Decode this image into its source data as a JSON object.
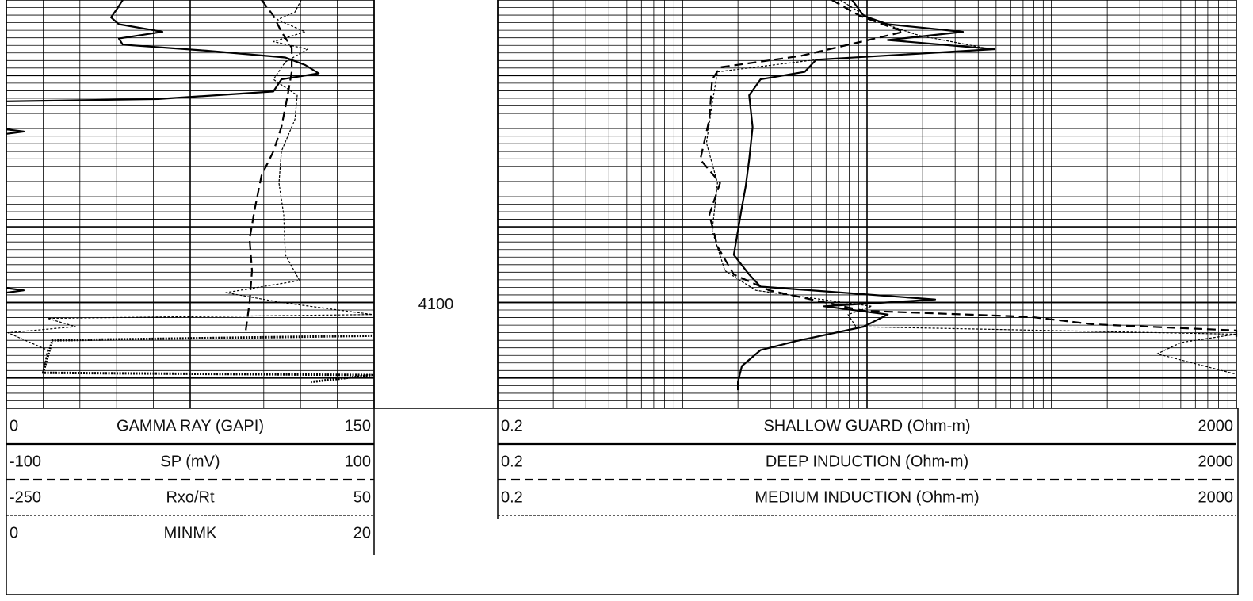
{
  "chart_data": [
    {
      "type": "line",
      "xscale": "linear",
      "ylim": [
        4060,
        4114
      ],
      "yticks": [
        4100
      ],
      "ygrid_step": 1,
      "ygrid_major": 10,
      "xgrid_divisions": 10,
      "xgrid_major": 5,
      "series": [
        {
          "name": "GAMMA RAY (GAPI)",
          "style": "solid",
          "color": "#000000",
          "xlim": [
            0,
            150
          ],
          "depth": [
            4060,
            4061.1,
            4062.3,
            4063.2,
            4064.2,
            4065.1,
            4065.9,
            4066.7,
            4067.6,
            4068.6,
            4069.7,
            4070.5,
            4072.1,
            4073.1,
            4073.4,
            null,
            4077.1,
            4077.4,
            4077.7,
            null,
            4098.1,
            4098.4,
            4098.7
          ],
          "values": [
            47.5,
            45.3,
            42.7,
            45.9,
            63.7,
            45.9,
            47.5,
            81.5,
            113.8,
            121.9,
            127.4,
            112.2,
            108.9,
            62,
            0,
            null,
            0,
            7.1,
            0,
            null,
            0,
            7.1,
            0
          ]
        },
        {
          "name": "SP (mV)",
          "style": "dashed",
          "color": "#000000",
          "xlim": [
            -100,
            100
          ],
          "depth": [
            4060,
            4062.1,
            4064.2,
            4066.3,
            4069.5,
            4072.6,
            4076.8,
            4080,
            4083.2,
            4087.4,
            4091.6,
            4095.8,
            4100,
            4103.7
          ],
          "values": [
            38.8,
            45.3,
            49.6,
            55.2,
            55.2,
            53,
            49.6,
            45.3,
            38.8,
            35.3,
            32.3,
            33.6,
            32.3,
            30.2
          ]
        },
        {
          "name": "Rxo/Rt",
          "style": "dotted",
          "color": "#000000",
          "xlim": [
            -250,
            50
          ],
          "depth": [
            4060,
            4061.6,
            4062.6,
            4064.2,
            4065.5,
            4066.5,
            4068.2,
            4070.5,
            4072.6,
            4075.8,
            4080,
            4084.2,
            4088.4,
            4093.7,
            4097.1,
            4098.7,
            4100,
            4101.6,
            4102.1,
            4103.2,
            4104,
            4106.3,
            4108.9
          ],
          "values": [
            -9.5,
            -14.6,
            -28.9,
            -6.2,
            -32.1,
            -4.3,
            -22.4,
            -32.1,
            -12.7,
            -14.6,
            -25.6,
            -27.6,
            -23.7,
            -22.4,
            -10.8,
            -70.9,
            -25.6,
            48.7,
            -216.4,
            -193.7,
            -248.7,
            -216.4,
            -219.6
          ]
        },
        {
          "name": "MINMK",
          "style": "thickdotted",
          "color": "#000000",
          "xlim": [
            0,
            20
          ],
          "depth": [
            4104.4,
            4105,
            4109.3,
            4109.6,
            4110.5
          ],
          "values": [
            19.9,
            2.5,
            2,
            19.9,
            16.6
          ]
        }
      ]
    },
    {
      "type": "line",
      "xscale": "log",
      "ylim": [
        4060,
        4114
      ],
      "ygrid_step": 1,
      "ygrid_major": 10,
      "series": [
        {
          "name": "SHALLOW GUARD (Ohm-m)",
          "style": "solid",
          "color": "#000000",
          "xlim": [
            0.2,
            2000
          ],
          "depth": [
            4060,
            4062.1,
            4063.2,
            4064.2,
            4065.3,
            4066.5,
            4067.9,
            4069.5,
            4070.5,
            4072.6,
            4076.8,
            4081.1,
            4084.7,
            4087.4,
            4090.5,
            4093.7,
            4096.3,
            4097.9,
            4099.6,
            4100.5,
            4101.6,
            4103.2,
            4105.1,
            4106.3,
            4108.4,
            4110.5,
            4111.6
          ],
          "values": [
            16.6,
            19.2,
            25.9,
            66.1,
            25.9,
            98.2,
            10.6,
            9.2,
            5.3,
            4.6,
            4.8,
            4.6,
            4.4,
            4.2,
            4,
            3.8,
            4.6,
            5.3,
            46.8,
            11.7,
            25.9,
            19.2,
            8.3,
            5.3,
            4.2,
            4,
            4
          ]
        },
        {
          "name": "DEEP INDUCTION (Ohm-m)",
          "style": "dashed",
          "color": "#000000",
          "xlim": [
            0.2,
            2000
          ],
          "depth": [
            4060,
            4062.1,
            4064.2,
            4067.4,
            4068.9,
            4070.5,
            4075.8,
            4081.1,
            4084.2,
            4088.4,
            4092.6,
            4096.3,
            4098.4,
            4101.1,
            4101.9,
            4102.9,
            4103.7,
            4104.7
          ],
          "values": [
            12.9,
            18.3,
            31.5,
            8.7,
            3.2,
            2.9,
            2.8,
            2.5,
            3.2,
            2.8,
            3.1,
            3.8,
            5.9,
            19.2,
            153,
            337,
            2000,
            2000
          ]
        },
        {
          "name": "MEDIUM INDUCTION (Ohm-m)",
          "style": "dotted",
          "color": "#000000",
          "xlim": [
            0.2,
            2000
          ],
          "depth": [
            4060,
            4062.6,
            4064.7,
            4066.5,
            4067.9,
            4069.5,
            4073.7,
            4078.9,
            4084.2,
            4090.5,
            4095.8,
            4098.4,
            4100.5,
            4101.6,
            4103.2,
            4104.2,
            4105.3,
            4106.8,
            4109.5
          ],
          "values": [
            14.3,
            21.2,
            38.4,
            93.5,
            10.6,
            3.1,
            2.9,
            2.7,
            3.1,
            2.9,
            3.4,
            5,
            21.2,
            15.8,
            17.4,
            2000,
            1002,
            745,
            2000
          ]
        }
      ]
    }
  ]
}
